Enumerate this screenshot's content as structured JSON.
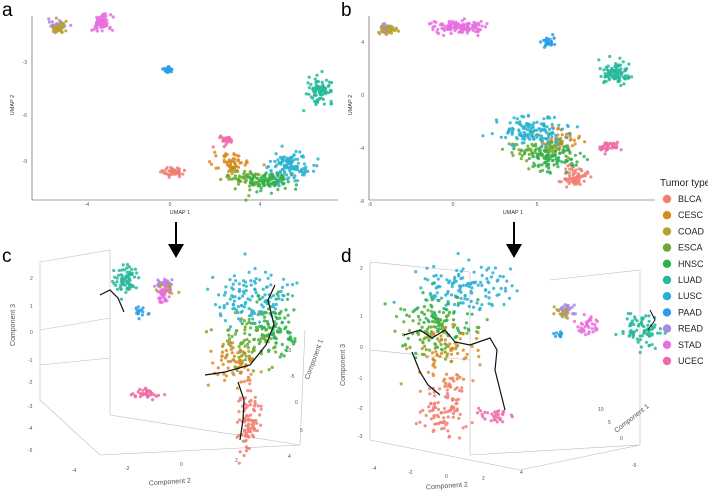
{
  "figure": {
    "panels": [
      {
        "letter": "a",
        "xlabel": "UMAP 1",
        "ylabel": "UMAP 2",
        "xticks": [
          "-4",
          "0",
          "4"
        ],
        "yticks": [
          "-3",
          "-6",
          "-9"
        ]
      },
      {
        "letter": "b",
        "xlabel": "UMAP 1",
        "ylabel": "UMAP 2",
        "xticks": [
          "-5",
          "0",
          "5"
        ],
        "yticks": [
          "4",
          "0",
          "-4",
          "-8"
        ]
      },
      {
        "letter": "c",
        "xlabel": "Component 2",
        "ylabel": "Component 3",
        "zlabel": "Component 1",
        "xticks": [
          "-4",
          "-2",
          "0",
          "2",
          "4"
        ],
        "yticks": [
          "2",
          "1",
          "0",
          "-1",
          "-2",
          "-3",
          "-4",
          "-5"
        ],
        "zticks": [
          "-10",
          "-5",
          "0",
          "5"
        ]
      },
      {
        "letter": "d",
        "xlabel": "Component 2",
        "ylabel": "Component 3",
        "zlabel": "Component 1",
        "xticks": [
          "-4",
          "-2",
          "0",
          "2",
          "4"
        ],
        "yticks": [
          "2",
          "1",
          "0",
          "-1",
          "-2",
          "-3"
        ],
        "zticks": [
          "10",
          "5",
          "0",
          "-5"
        ]
      }
    ],
    "legend": {
      "title": "Tumor type",
      "items": [
        {
          "label": "BLCA",
          "color": "#f07f73"
        },
        {
          "label": "CESC",
          "color": "#d98a1f"
        },
        {
          "label": "COAD",
          "color": "#b8a12a"
        },
        {
          "label": "ESCA",
          "color": "#6aaa2e"
        },
        {
          "label": "HNSC",
          "color": "#2fb04a"
        },
        {
          "label": "LUAD",
          "color": "#25b89a"
        },
        {
          "label": "LUSC",
          "color": "#29b1d1"
        },
        {
          "label": "PAAD",
          "color": "#2a9ee6"
        },
        {
          "label": "READ",
          "color": "#a88be0"
        },
        {
          "label": "STAD",
          "color": "#e86fe0"
        },
        {
          "label": "UCEC",
          "color": "#f06aa8"
        }
      ]
    },
    "arrow_color": "#000000"
  },
  "chart_data": [
    {
      "type": "scatter",
      "panel": "a",
      "description_of_method": "UMAP",
      "xlabel": "UMAP 1",
      "ylabel": "UMAP 2",
      "clusters": [
        {
          "label": "READ",
          "x": -4.6,
          "y": 0.1,
          "spread": [
            0.3,
            0.3
          ],
          "n": 40
        },
        {
          "label": "COAD",
          "x": -4.5,
          "y": 0.0,
          "spread": [
            0.35,
            0.35
          ],
          "n": 35
        },
        {
          "label": "STAD",
          "x": -2.6,
          "y": 0.3,
          "spread": [
            0.4,
            0.55
          ],
          "n": 70
        },
        {
          "label": "PAAD",
          "x": 0.4,
          "y": -2.7,
          "spread": [
            0.2,
            0.2
          ],
          "n": 25
        },
        {
          "label": "LUAD",
          "x": 7.2,
          "y": -4.0,
          "spread": [
            0.5,
            0.7
          ],
          "n": 80
        },
        {
          "label": "UCEC",
          "x": 3.0,
          "y": -7.3,
          "spread": [
            0.25,
            0.3
          ],
          "n": 25
        },
        {
          "label": "BLCA",
          "x": 0.6,
          "y": -9.3,
          "spread": [
            0.5,
            0.25
          ],
          "n": 50
        },
        {
          "label": "CESC",
          "x": 3.3,
          "y": -8.8,
          "spread": [
            0.8,
            0.6
          ],
          "n": 60
        },
        {
          "label": "ESCA",
          "x": 4.0,
          "y": -9.8,
          "spread": [
            1.0,
            0.6
          ],
          "n": 70
        },
        {
          "label": "HNSC",
          "x": 4.9,
          "y": -9.9,
          "spread": [
            1.0,
            0.6
          ],
          "n": 90
        },
        {
          "label": "LUSC",
          "x": 5.9,
          "y": -8.9,
          "spread": [
            0.8,
            0.8
          ],
          "n": 110
        }
      ]
    },
    {
      "type": "scatter",
      "panel": "b",
      "description_of_method": "UMAP",
      "xlabel": "UMAP 1",
      "ylabel": "UMAP 2",
      "clusters": [
        {
          "label": "READ",
          "x": -8.5,
          "y": 3.9,
          "spread": [
            0.35,
            0.25
          ],
          "n": 40
        },
        {
          "label": "COAD",
          "x": -8.3,
          "y": 3.8,
          "spread": [
            0.5,
            0.3
          ],
          "n": 35
        },
        {
          "label": "STAD",
          "x": -3.5,
          "y": 4.0,
          "spread": [
            1.6,
            0.4
          ],
          "n": 120
        },
        {
          "label": "PAAD",
          "x": 2.8,
          "y": 3.0,
          "spread": [
            0.5,
            0.3
          ],
          "n": 30
        },
        {
          "label": "LUAD",
          "x": 7.3,
          "y": 0.8,
          "spread": [
            1.0,
            0.7
          ],
          "n": 90
        },
        {
          "label": "UCEC",
          "x": 6.8,
          "y": -4.3,
          "spread": [
            0.8,
            0.3
          ],
          "n": 40
        },
        {
          "label": "BLCA",
          "x": 4.6,
          "y": -6.3,
          "spread": [
            0.7,
            0.6
          ],
          "n": 70
        },
        {
          "label": "CESC",
          "x": 3.4,
          "y": -3.9,
          "spread": [
            1.3,
            0.9
          ],
          "n": 60
        },
        {
          "label": "ESCA",
          "x": 2.0,
          "y": -4.5,
          "spread": [
            1.8,
            0.8
          ],
          "n": 70
        },
        {
          "label": "HNSC",
          "x": 3.0,
          "y": -5.0,
          "spread": [
            1.5,
            0.9
          ],
          "n": 90
        },
        {
          "label": "LUSC",
          "x": 1.6,
          "y": -3.2,
          "spread": [
            2.4,
            0.9
          ],
          "n": 140
        }
      ]
    },
    {
      "type": "scatter",
      "panel": "c",
      "description_of_method": "3D trajectory",
      "xlabel": "Component 2",
      "ylabel": "Component 3",
      "zlabel": "Component 1",
      "clusters": [
        {
          "label": "LUAD",
          "x": -2.8,
          "y": 2.0,
          "spread": [
            0.5,
            0.5
          ],
          "n": 70
        },
        {
          "label": "READ",
          "x": -1.4,
          "y": 1.8,
          "spread": [
            0.3,
            0.2
          ],
          "n": 35
        },
        {
          "label": "COAD",
          "x": -1.3,
          "y": 1.6,
          "spread": [
            0.3,
            0.2
          ],
          "n": 20
        },
        {
          "label": "STAD",
          "x": -1.4,
          "y": 1.4,
          "spread": [
            0.2,
            0.4
          ],
          "n": 40
        },
        {
          "label": "PAAD",
          "x": -2.3,
          "y": 0.7,
          "spread": [
            0.2,
            0.2
          ],
          "n": 15
        },
        {
          "label": "UCEC",
          "x": -2.0,
          "y": -2.7,
          "spread": [
            0.6,
            0.2
          ],
          "n": 40
        },
        {
          "label": "LUSC",
          "x": 2.0,
          "y": 1.2,
          "spread": [
            1.2,
            1.0
          ],
          "n": 130
        },
        {
          "label": "HNSC",
          "x": 2.8,
          "y": 0.0,
          "spread": [
            0.8,
            1.0
          ],
          "n": 100
        },
        {
          "label": "ESCA",
          "x": 1.8,
          "y": -0.6,
          "spread": [
            0.9,
            1.0
          ],
          "n": 80
        },
        {
          "label": "CESC",
          "x": 1.3,
          "y": -1.5,
          "spread": [
            0.8,
            0.8
          ],
          "n": 60
        },
        {
          "label": "BLCA",
          "x": 1.8,
          "y": -3.8,
          "spread": [
            0.4,
            1.2
          ],
          "n": 90
        }
      ]
    },
    {
      "type": "scatter",
      "panel": "d",
      "description_of_method": "3D trajectory",
      "xlabel": "Component 2",
      "ylabel": "Component 3",
      "zlabel": "Component 1",
      "clusters": [
        {
          "label": "LUSC",
          "x": -1.3,
          "y": 1.6,
          "spread": [
            1.2,
            0.7
          ],
          "n": 130
        },
        {
          "label": "HNSC",
          "x": -1.9,
          "y": 0.6,
          "spread": [
            0.9,
            0.8
          ],
          "n": 90
        },
        {
          "label": "ESCA",
          "x": -2.0,
          "y": 0.1,
          "spread": [
            0.9,
            0.8
          ],
          "n": 80
        },
        {
          "label": "CESC",
          "x": -1.6,
          "y": -0.5,
          "spread": [
            0.8,
            0.8
          ],
          "n": 60
        },
        {
          "label": "BLCA",
          "x": -1.8,
          "y": -2.0,
          "spread": [
            0.6,
            1.0
          ],
          "n": 100
        },
        {
          "label": "UCEC",
          "x": -0.3,
          "y": -2.3,
          "spread": [
            0.5,
            0.2
          ],
          "n": 30
        },
        {
          "label": "READ",
          "x": 1.7,
          "y": 0.9,
          "spread": [
            0.2,
            0.2
          ],
          "n": 30
        },
        {
          "label": "COAD",
          "x": 1.6,
          "y": 0.8,
          "spread": [
            0.2,
            0.2
          ],
          "n": 15
        },
        {
          "label": "STAD",
          "x": 2.3,
          "y": 0.4,
          "spread": [
            0.3,
            0.25
          ],
          "n": 40
        },
        {
          "label": "PAAD",
          "x": 1.5,
          "y": 0.2,
          "spread": [
            0.15,
            0.15
          ],
          "n": 10
        },
        {
          "label": "LUAD",
          "x": 3.8,
          "y": 0.3,
          "spread": [
            0.5,
            0.4
          ],
          "n": 80
        }
      ]
    }
  ]
}
